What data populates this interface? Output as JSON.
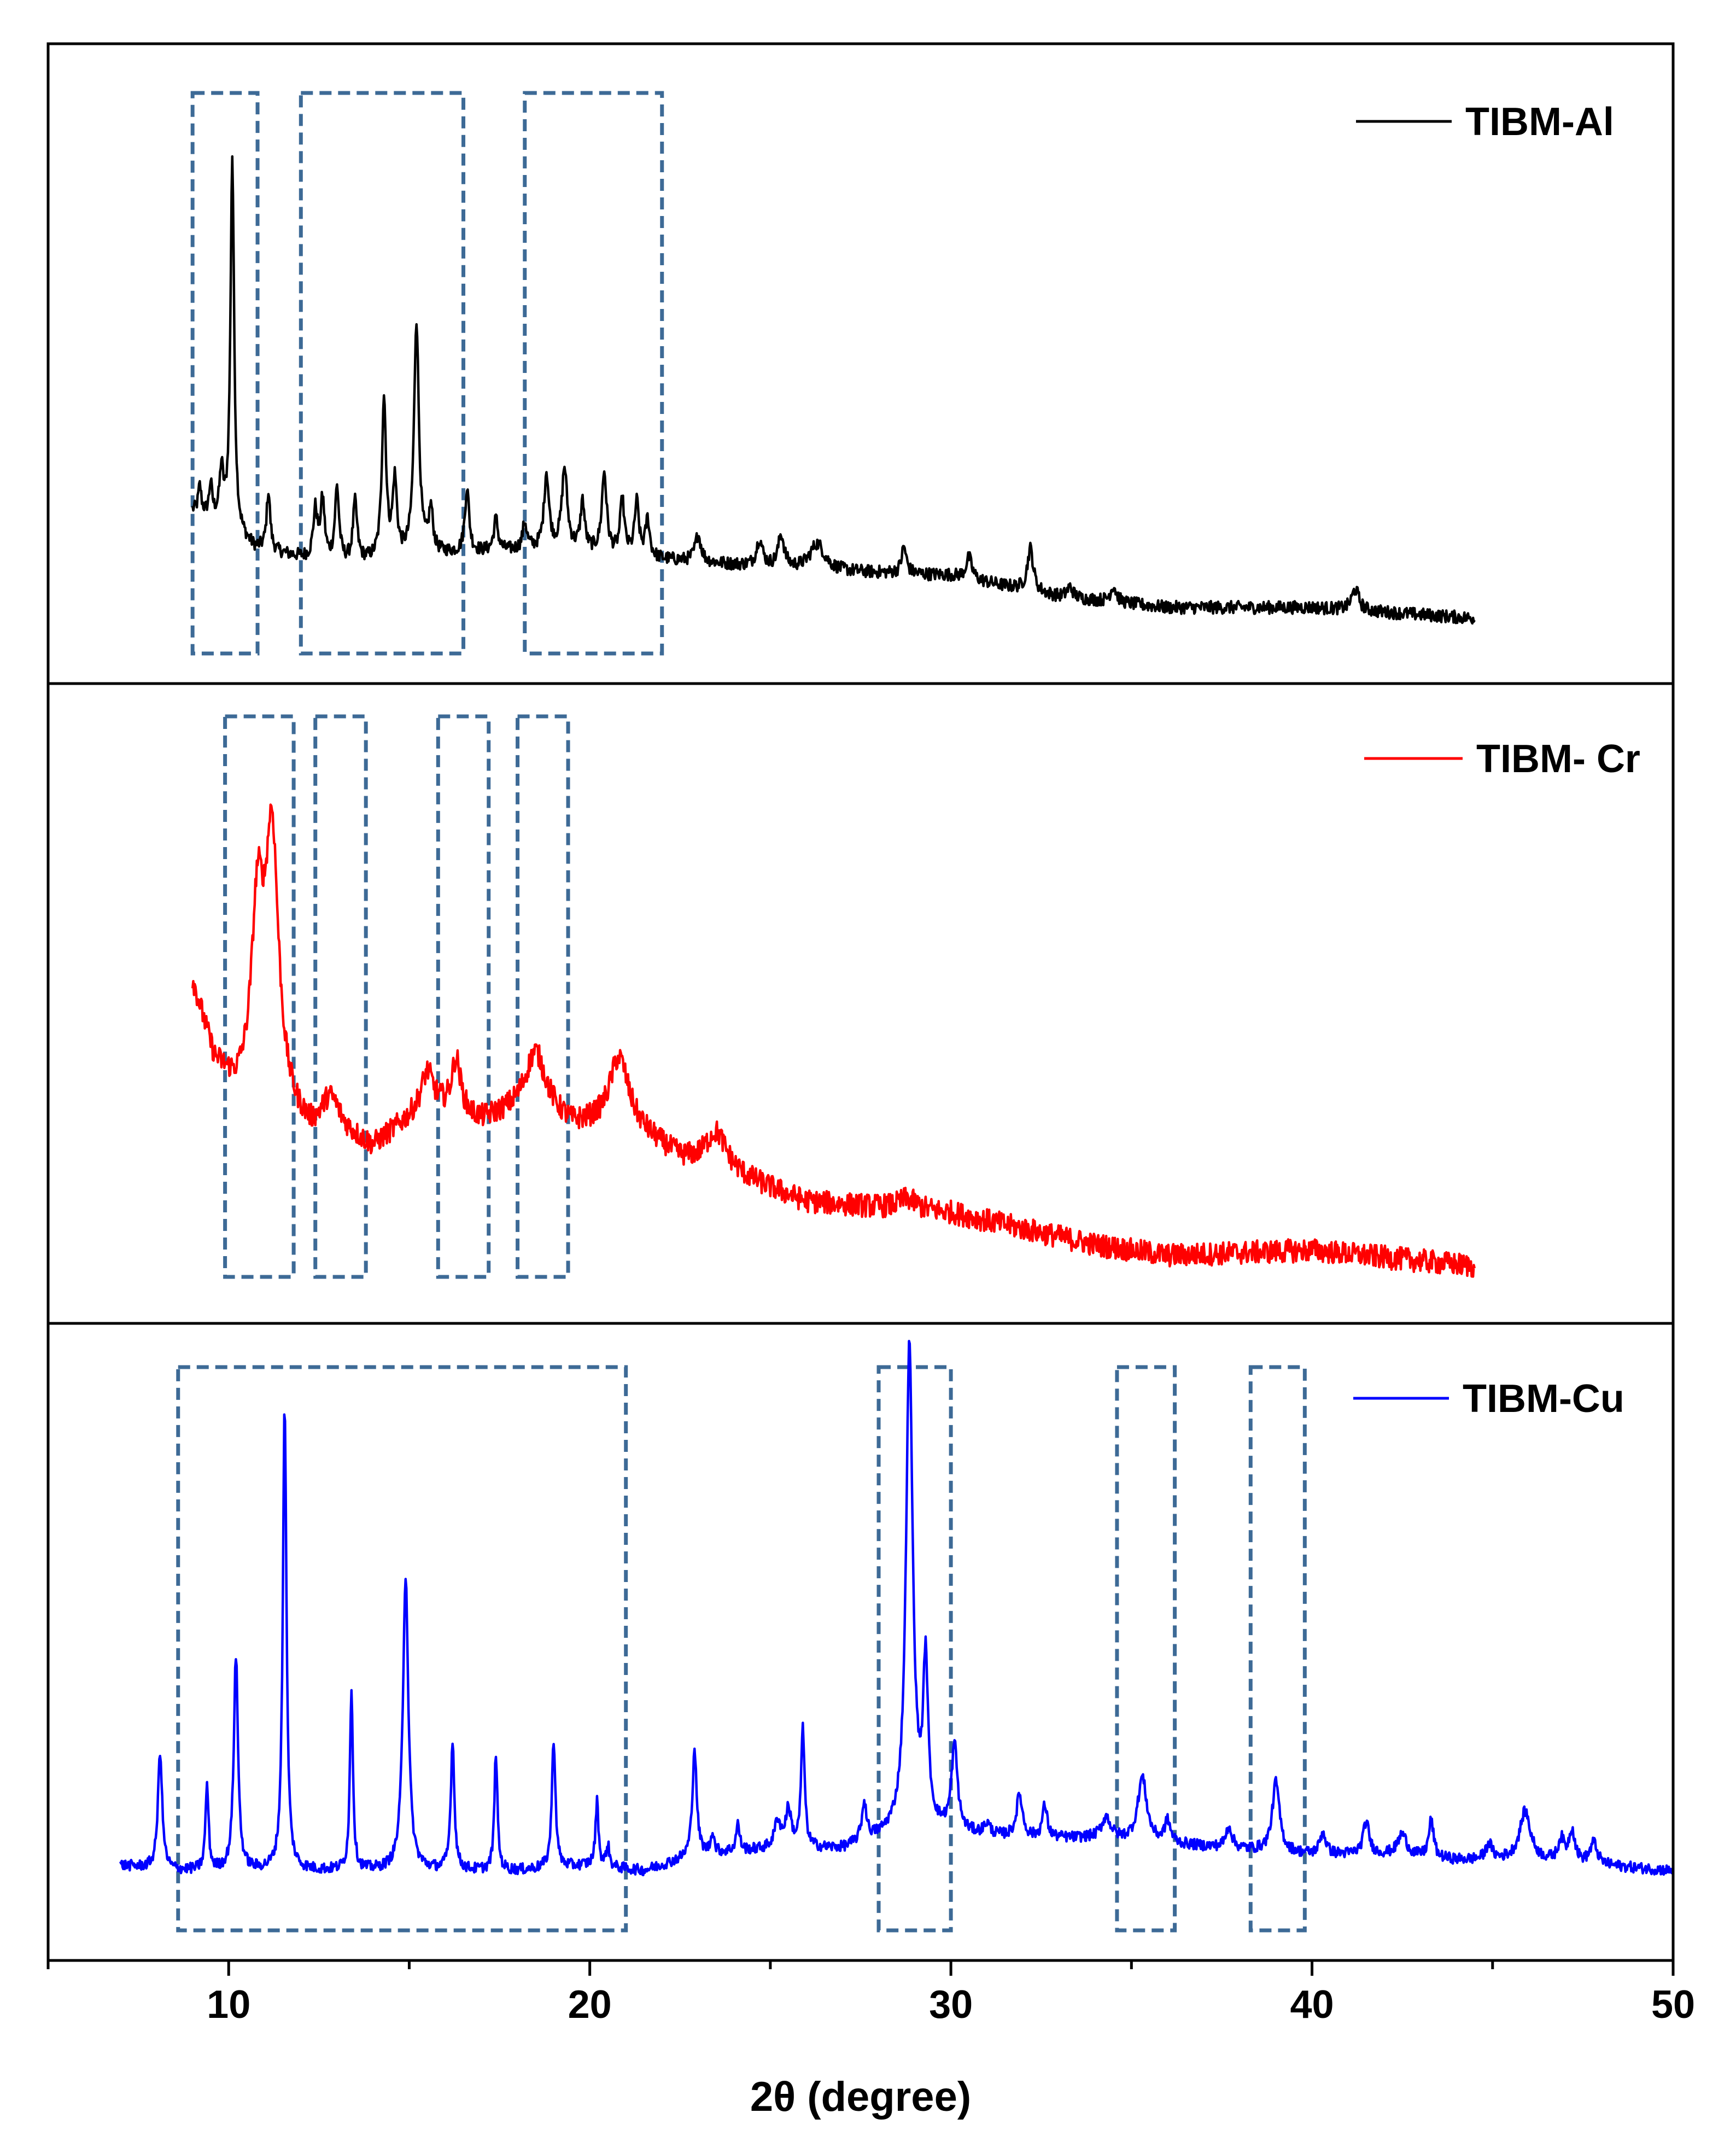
{
  "chart_data": {
    "type": "line",
    "title": "",
    "xlabel": "2θ (degree)",
    "ylabel": "",
    "xlim": [
      5,
      50
    ],
    "xticks": [
      10,
      20,
      30,
      40,
      50
    ],
    "xtick_labels": [
      "10",
      "20",
      "30",
      "40",
      "50"
    ],
    "grid": false,
    "panels": [
      {
        "name": "TIBM-Al",
        "legend": "TIBM-Al",
        "color": "#000000",
        "ylim": [
          0,
          100
        ],
        "baseline": [
          [
            9.0,
            22
          ],
          [
            9.8,
            20
          ],
          [
            10.7,
            15
          ],
          [
            13,
            12
          ],
          [
            16,
            14
          ],
          [
            19,
            15
          ],
          [
            22,
            13
          ],
          [
            26,
            11
          ],
          [
            30,
            10
          ],
          [
            33,
            6
          ],
          [
            36,
            4
          ],
          [
            40,
            4
          ],
          [
            44.5,
            2
          ]
        ],
        "peaks": [
          [
            9.2,
            5,
            0.05
          ],
          [
            9.5,
            6,
            0.05
          ],
          [
            9.8,
            9,
            0.06
          ],
          [
            10.1,
            70,
            0.06
          ],
          [
            11.1,
            11,
            0.06
          ],
          [
            12.4,
            9,
            0.07
          ],
          [
            12.6,
            11,
            0.07
          ],
          [
            13.0,
            14,
            0.07
          ],
          [
            13.5,
            11,
            0.07
          ],
          [
            14.3,
            30,
            0.07
          ],
          [
            14.6,
            14,
            0.07
          ],
          [
            15.2,
            44,
            0.08
          ],
          [
            15.6,
            8,
            0.07
          ],
          [
            16.6,
            12,
            0.07
          ],
          [
            17.4,
            6,
            0.07
          ],
          [
            18.2,
            5,
            0.07
          ],
          [
            18.8,
            14,
            0.08
          ],
          [
            19.3,
            15,
            0.09
          ],
          [
            19.8,
            9,
            0.07
          ],
          [
            20.4,
            15,
            0.08
          ],
          [
            20.9,
            10,
            0.07
          ],
          [
            21.3,
            10,
            0.07
          ],
          [
            21.6,
            7,
            0.07
          ],
          [
            23.0,
            5,
            0.1
          ],
          [
            24.7,
            5,
            0.1
          ],
          [
            25.3,
            6,
            0.1
          ],
          [
            26.3,
            5,
            0.25
          ],
          [
            28.7,
            5,
            0.08
          ],
          [
            30.5,
            4,
            0.1
          ],
          [
            32.2,
            8,
            0.1
          ],
          [
            33.3,
            2,
            0.1
          ],
          [
            34.5,
            3,
            0.1
          ],
          [
            41.2,
            4,
            0.12
          ]
        ],
        "noise": 1.2,
        "boxes": [
          [
            9.0,
            10.8
          ],
          [
            12.0,
            16.5
          ],
          [
            18.2,
            22.0
          ]
        ]
      },
      {
        "name": "TIBM-Cr",
        "legend": "TIBM- Cr",
        "color": "#ff0000",
        "ylim": [
          0,
          100
        ],
        "baseline": [
          [
            9.0,
            55
          ],
          [
            9.6,
            40
          ],
          [
            10.2,
            34
          ],
          [
            11.5,
            30
          ],
          [
            12.3,
            26
          ],
          [
            13.0,
            27
          ],
          [
            14.0,
            24
          ],
          [
            15.5,
            32
          ],
          [
            17.0,
            29
          ],
          [
            18.5,
            32
          ],
          [
            19.5,
            28
          ],
          [
            21.0,
            29
          ],
          [
            22.5,
            22
          ],
          [
            24.0,
            19
          ],
          [
            26.0,
            14
          ],
          [
            28.0,
            13
          ],
          [
            30.0,
            12
          ],
          [
            32.0,
            9
          ],
          [
            34.0,
            6
          ],
          [
            36.0,
            4
          ],
          [
            40.0,
            5
          ],
          [
            44.5,
            2
          ]
        ],
        "peaks": [
          [
            10.8,
            34,
            0.2
          ],
          [
            11.2,
            50,
            0.22
          ],
          [
            12.8,
            6,
            0.3
          ],
          [
            15.5,
            6,
            0.2
          ],
          [
            16.3,
            10,
            0.15
          ],
          [
            18.5,
            10,
            0.35
          ],
          [
            20.8,
            12,
            0.3
          ],
          [
            23.5,
            7,
            0.35
          ],
          [
            28.8,
            2,
            0.3
          ]
        ],
        "noise": 2.2,
        "boxes": [
          [
            9.9,
            11.8
          ],
          [
            12.4,
            13.8
          ],
          [
            15.8,
            17.2
          ],
          [
            18.0,
            19.4
          ]
        ]
      },
      {
        "name": "TIBM-Cu",
        "legend": "TIBM-Cu",
        "color": "#0000ff",
        "ylim": [
          0,
          100
        ],
        "baseline": [
          [
            7.0,
            7
          ],
          [
            8.5,
            6
          ],
          [
            10.0,
            6
          ],
          [
            12.0,
            6
          ],
          [
            14.0,
            6
          ],
          [
            16.0,
            6
          ],
          [
            18.0,
            6
          ],
          [
            20.0,
            7
          ],
          [
            21.5,
            6
          ],
          [
            23.0,
            9
          ],
          [
            25.0,
            10
          ],
          [
            27.0,
            10
          ],
          [
            28.0,
            12
          ],
          [
            29.0,
            14
          ],
          [
            30.0,
            13
          ],
          [
            32.0,
            12
          ],
          [
            34.0,
            12
          ],
          [
            36.0,
            11
          ],
          [
            38.0,
            10
          ],
          [
            40.0,
            9
          ],
          [
            42.0,
            9
          ],
          [
            44.0,
            8
          ],
          [
            46.0,
            8
          ],
          [
            48.0,
            7
          ],
          [
            50.0,
            6
          ]
        ],
        "peaks": [
          [
            8.1,
            22,
            0.07
          ],
          [
            9.4,
            16,
            0.05
          ],
          [
            10.2,
            40,
            0.07
          ],
          [
            11.55,
            87,
            0.06
          ],
          [
            13.4,
            34,
            0.05
          ],
          [
            14.9,
            55,
            0.09
          ],
          [
            16.2,
            24,
            0.06
          ],
          [
            17.4,
            22,
            0.05
          ],
          [
            19.0,
            24,
            0.06
          ],
          [
            20.2,
            12,
            0.05
          ],
          [
            20.5,
            4,
            0.05
          ],
          [
            22.9,
            20,
            0.07
          ],
          [
            23.4,
            4,
            0.05
          ],
          [
            24.1,
            5,
            0.06
          ],
          [
            25.2,
            5,
            0.1
          ],
          [
            25.5,
            7,
            0.1
          ],
          [
            25.9,
            22,
            0.06
          ],
          [
            27.6,
            7,
            0.08
          ],
          [
            28.85,
            90,
            0.11
          ],
          [
            29.3,
            30,
            0.08
          ],
          [
            30.1,
            16,
            0.1
          ],
          [
            31.0,
            2,
            0.1
          ],
          [
            31.9,
            8,
            0.1
          ],
          [
            32.6,
            6,
            0.08
          ],
          [
            34.3,
            4,
            0.15
          ],
          [
            35.3,
            12,
            0.15
          ],
          [
            36.0,
            4,
            0.1
          ],
          [
            37.7,
            4,
            0.1
          ],
          [
            39.0,
            13,
            0.12
          ],
          [
            40.3,
            4,
            0.1
          ],
          [
            41.5,
            6,
            0.1
          ],
          [
            42.5,
            4,
            0.15
          ],
          [
            43.3,
            7,
            0.08
          ],
          [
            44.9,
            3,
            0.1
          ],
          [
            45.9,
            9,
            0.18
          ],
          [
            46.9,
            4,
            0.1
          ],
          [
            47.2,
            6,
            0.1
          ],
          [
            47.8,
            4,
            0.12
          ]
        ],
        "noise": 1.0,
        "boxes": [
          [
            8.6,
            21.0
          ],
          [
            28.0,
            30.0
          ],
          [
            34.6,
            36.2
          ],
          [
            38.3,
            39.8
          ]
        ]
      }
    ]
  }
}
